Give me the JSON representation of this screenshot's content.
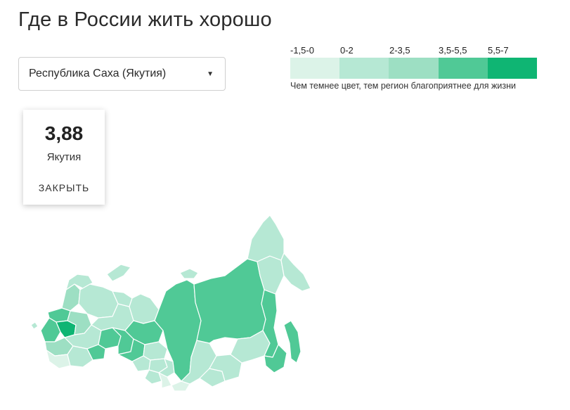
{
  "title": "Где в России жить хорошо",
  "selector": {
    "value": "Республика Саха (Якутия)",
    "caret": "▼"
  },
  "legend": {
    "ranges": [
      {
        "label": "-1,5-0",
        "color": "#dcf3e8"
      },
      {
        "label": "0-2",
        "color": "#b6e8d4"
      },
      {
        "label": "2-3,5",
        "color": "#9ddfc3"
      },
      {
        "label": "3,5-5,5",
        "color": "#50c996"
      },
      {
        "label": "5,5-7",
        "color": "#0fb573"
      }
    ],
    "note": "Чем темнее цвет, тем регион благоприятнее для жизни"
  },
  "card": {
    "score": "3,88",
    "region": "Якутия",
    "close_label": "ЗАКРЫТЬ"
  },
  "map": {
    "regions": [
      {
        "id": "kaliningrad",
        "color": "#b6e8d4"
      },
      {
        "id": "murmansk",
        "color": "#b6e8d4"
      },
      {
        "id": "karelia",
        "color": "#9ddfc3"
      },
      {
        "id": "arkhangelsk",
        "color": "#b6e8d4"
      },
      {
        "id": "leningrad",
        "color": "#50c996"
      },
      {
        "id": "moscow-area",
        "color": "#0fb573"
      },
      {
        "id": "central-west",
        "color": "#50c996"
      },
      {
        "id": "central-east",
        "color": "#9ddfc3"
      },
      {
        "id": "south",
        "color": "#9ddfc3"
      },
      {
        "id": "caucasus",
        "color": "#dcf3e8"
      },
      {
        "id": "volga",
        "color": "#b6e8d4"
      },
      {
        "id": "komi",
        "color": "#b6e8d4"
      },
      {
        "id": "nenets",
        "color": "#b6e8d4"
      },
      {
        "id": "perm",
        "color": "#50c996"
      },
      {
        "id": "bashkortostan",
        "color": "#50c996"
      },
      {
        "id": "orenburg",
        "color": "#b6e8d4"
      },
      {
        "id": "sverdlovsk",
        "color": "#50c996"
      },
      {
        "id": "yamal",
        "color": "#b6e8d4"
      },
      {
        "id": "khanty-mansi",
        "color": "#50c996"
      },
      {
        "id": "tyumen",
        "color": "#50c996"
      },
      {
        "id": "omsk",
        "color": "#b6e8d4"
      },
      {
        "id": "tomsk",
        "color": "#b6e8d4"
      },
      {
        "id": "novosibirsk",
        "color": "#b6e8d4"
      },
      {
        "id": "altai",
        "color": "#b6e8d4"
      },
      {
        "id": "altai-rep",
        "color": "#dcf3e8"
      },
      {
        "id": "kemerovo",
        "color": "#b6e8d4"
      },
      {
        "id": "krasnoyarsk",
        "color": "#50c996"
      },
      {
        "id": "taimyr-islands",
        "color": "#b6e8d4"
      },
      {
        "id": "tuva",
        "color": "#dcf3e8"
      },
      {
        "id": "irkutsk",
        "color": "#b6e8d4"
      },
      {
        "id": "buryatia",
        "color": "#b6e8d4"
      },
      {
        "id": "zabaykalsky",
        "color": "#b6e8d4"
      },
      {
        "id": "yakutia",
        "color": "#50c996"
      },
      {
        "id": "amur",
        "color": "#b6e8d4"
      },
      {
        "id": "khabarovsk",
        "color": "#50c996"
      },
      {
        "id": "primorsky",
        "color": "#50c996"
      },
      {
        "id": "magadan",
        "color": "#b6e8d4"
      },
      {
        "id": "chukotka",
        "color": "#b6e8d4"
      },
      {
        "id": "kamchatka",
        "color": "#b6e8d4"
      },
      {
        "id": "sakhalin",
        "color": "#50c996"
      },
      {
        "id": "novaya-zemlya",
        "color": "#b6e8d4"
      }
    ]
  }
}
